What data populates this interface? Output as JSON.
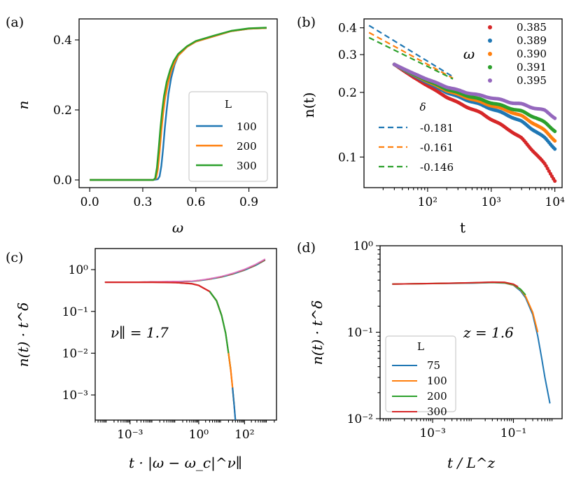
{
  "chart_data": [
    {
      "panel": "(a)",
      "type": "line",
      "xlabel": "ω",
      "ylabel": "n",
      "xlim": [
        -0.06,
        1.06
      ],
      "ylim": [
        -0.022,
        0.46
      ],
      "xticks": [
        0.0,
        0.3,
        0.6,
        0.9
      ],
      "xtick_labels": [
        "0.0",
        "0.3",
        "0.6",
        "0.9"
      ],
      "yticks": [
        0.0,
        0.2,
        0.4
      ],
      "ytick_labels": [
        "0.0",
        "0.2",
        "0.4"
      ],
      "legend": {
        "title": "L",
        "placement": "lower-right"
      },
      "series": [
        {
          "name": "100",
          "color": "#1f77b4",
          "x": [
            0,
            0.36,
            0.385,
            0.395,
            0.405,
            0.415,
            0.425,
            0.435,
            0.445,
            0.46,
            0.48,
            0.5,
            0.55,
            0.6,
            0.7,
            0.8,
            0.9,
            1.0
          ],
          "y": [
            0,
            0,
            0.002,
            0.01,
            0.04,
            0.09,
            0.15,
            0.2,
            0.245,
            0.29,
            0.33,
            0.355,
            0.38,
            0.395,
            0.41,
            0.425,
            0.432,
            0.434
          ]
        },
        {
          "name": "200",
          "color": "#ff7f0e",
          "x": [
            0,
            0.36,
            0.375,
            0.385,
            0.395,
            0.405,
            0.415,
            0.425,
            0.44,
            0.46,
            0.48,
            0.5,
            0.55,
            0.6,
            0.7,
            0.8,
            0.9,
            1.0
          ],
          "y": [
            0,
            0,
            0.005,
            0.03,
            0.08,
            0.14,
            0.19,
            0.23,
            0.27,
            0.31,
            0.335,
            0.355,
            0.38,
            0.395,
            0.41,
            0.425,
            0.432,
            0.434
          ]
        },
        {
          "name": "300",
          "color": "#2ca02c",
          "x": [
            0,
            0.36,
            0.37,
            0.38,
            0.39,
            0.4,
            0.41,
            0.42,
            0.435,
            0.455,
            0.475,
            0.5,
            0.55,
            0.6,
            0.7,
            0.8,
            0.9,
            1.0
          ],
          "y": [
            0,
            0,
            0.005,
            0.035,
            0.09,
            0.15,
            0.2,
            0.24,
            0.28,
            0.315,
            0.34,
            0.36,
            0.382,
            0.397,
            0.412,
            0.426,
            0.433,
            0.435
          ]
        }
      ]
    },
    {
      "panel": "(b)",
      "type": "scatter",
      "xlabel": "t",
      "ylabel": "n(t)",
      "xscale": "log",
      "yscale": "log",
      "xlim": [
        10,
        13000
      ],
      "ylim": [
        0.072,
        0.44
      ],
      "xticks": [
        100,
        1000,
        10000
      ],
      "xtick_labels": [
        "10²",
        "10³",
        "10⁴"
      ],
      "yticks": [
        0.1,
        0.2,
        0.3,
        0.4
      ],
      "ytick_labels": [
        "0.1",
        "0.2",
        "0.3",
        "0.4"
      ],
      "series_legend_title": "ω",
      "fit_legend_title": "δ",
      "series": [
        {
          "name": "0.385",
          "color": "#d62728",
          "t": [
            30,
            60,
            100,
            200,
            400,
            700,
            1000,
            2000,
            3000,
            5000,
            7000,
            10000
          ],
          "n": [
            0.27,
            0.235,
            0.215,
            0.19,
            0.172,
            0.16,
            0.15,
            0.133,
            0.122,
            0.104,
            0.092,
            0.078
          ]
        },
        {
          "name": "0.389",
          "color": "#1f77b4",
          "t": [
            30,
            60,
            100,
            200,
            400,
            700,
            1000,
            2000,
            3000,
            5000,
            7000,
            10000
          ],
          "n": [
            0.27,
            0.24,
            0.222,
            0.2,
            0.185,
            0.175,
            0.168,
            0.155,
            0.146,
            0.132,
            0.122,
            0.11
          ]
        },
        {
          "name": "0.390",
          "color": "#ff7f0e",
          "t": [
            30,
            60,
            100,
            200,
            400,
            700,
            1000,
            2000,
            3000,
            5000,
            7000,
            10000
          ],
          "n": [
            0.27,
            0.242,
            0.225,
            0.204,
            0.19,
            0.18,
            0.174,
            0.163,
            0.155,
            0.142,
            0.132,
            0.12
          ]
        },
        {
          "name": "0.391",
          "color": "#2ca02c",
          "t": [
            30,
            60,
            100,
            200,
            400,
            700,
            1000,
            2000,
            3000,
            5000,
            7000,
            10000
          ],
          "n": [
            0.27,
            0.243,
            0.227,
            0.207,
            0.194,
            0.185,
            0.179,
            0.169,
            0.163,
            0.153,
            0.144,
            0.133
          ]
        },
        {
          "name": "0.395",
          "color": "#9467bd",
          "t": [
            30,
            60,
            100,
            200,
            400,
            700,
            1000,
            2000,
            3000,
            5000,
            7000,
            10000
          ],
          "n": [
            0.27,
            0.245,
            0.23,
            0.212,
            0.2,
            0.193,
            0.189,
            0.18,
            0.176,
            0.169,
            0.164,
            0.153
          ]
        }
      ],
      "fits": [
        {
          "label": "-0.181",
          "color": "#1f77b4",
          "delta": -0.181,
          "t": [
            12,
            250
          ],
          "n0": 0.41
        },
        {
          "label": "-0.161",
          "color": "#ff7f0e",
          "delta": -0.161,
          "t": [
            12,
            250
          ],
          "n0": 0.38
        },
        {
          "label": "-0.146",
          "color": "#2ca02c",
          "delta": -0.146,
          "t": [
            12,
            250
          ],
          "n0": 0.36
        }
      ]
    },
    {
      "panel": "(c)",
      "type": "line",
      "xlabel": "t · |ω − ω_c|^ν∥",
      "ylabel": "n(t) · t^δ",
      "xscale": "log",
      "yscale": "log",
      "xlim": [
        3e-05,
        2500
      ],
      "ylim": [
        0.00025,
        3.2
      ],
      "xticks": [
        0.001,
        1,
        100
      ],
      "xtick_labels": [
        "10⁻³",
        "10⁰",
        "10²"
      ],
      "yticks": [
        0.001,
        0.01,
        0.1,
        1
      ],
      "ytick_labels": [
        "10⁻³",
        "10⁻²",
        "10⁻¹",
        "10⁰"
      ],
      "annotation": "ν∥ = 1.7",
      "upper_branch": {
        "colors": [
          "#1f77b4",
          "#ff7f0e",
          "#2ca02c",
          "#d62728",
          "#9467bd",
          "#8c564b",
          "#e377c2"
        ],
        "x": [
          8e-05,
          0.001,
          0.01,
          0.1,
          0.5,
          1,
          3,
          10,
          30,
          100,
          300,
          800
        ],
        "y": [
          0.5,
          0.5,
          0.51,
          0.52,
          0.53,
          0.55,
          0.6,
          0.68,
          0.8,
          1.0,
          1.3,
          1.75
        ]
      },
      "lower_branch": {
        "colors": [
          "#1f77b4",
          "#ff7f0e",
          "#2ca02c",
          "#d62728"
        ],
        "x": [
          8e-05,
          0.001,
          0.01,
          0.1,
          0.5,
          1,
          3,
          6,
          10,
          15,
          20,
          25,
          30,
          35,
          40
        ],
        "y": [
          0.5,
          0.5,
          0.5,
          0.49,
          0.46,
          0.42,
          0.3,
          0.18,
          0.08,
          0.03,
          0.01,
          0.004,
          0.0015,
          0.0006,
          0.00025
        ]
      }
    },
    {
      "panel": "(d)",
      "type": "line",
      "xlabel": "t / L^z",
      "ylabel": "n(t) · t^δ",
      "xscale": "log",
      "yscale": "log",
      "xlim": [
        5e-05,
        1.6
      ],
      "ylim": [
        0.01,
        1.0
      ],
      "xticks": [
        0.001,
        0.1
      ],
      "xtick_labels": [
        "10⁻³",
        "10⁻¹"
      ],
      "yticks": [
        0.01,
        0.1,
        1
      ],
      "ytick_labels": [
        "10⁻²",
        "10⁻¹",
        "10⁰"
      ],
      "annotation": "z = 1.6",
      "legend": {
        "title": "L",
        "placement": "lower-left"
      },
      "series": [
        {
          "name": "75",
          "color": "#1f77b4",
          "x": [
            0.0001,
            0.001,
            0.01,
            0.03,
            0.06,
            0.1,
            0.15,
            0.2,
            0.3,
            0.4,
            0.5,
            0.6,
            0.8
          ],
          "y": [
            0.36,
            0.365,
            0.37,
            0.375,
            0.37,
            0.35,
            0.3,
            0.25,
            0.16,
            0.09,
            0.05,
            0.03,
            0.015
          ]
        },
        {
          "name": "100",
          "color": "#ff7f0e",
          "x": [
            0.0001,
            0.001,
            0.01,
            0.03,
            0.06,
            0.1,
            0.15,
            0.2,
            0.3,
            0.4
          ],
          "y": [
            0.36,
            0.365,
            0.372,
            0.377,
            0.372,
            0.352,
            0.31,
            0.26,
            0.17,
            0.1
          ]
        },
        {
          "name": "200",
          "color": "#2ca02c",
          "x": [
            0.0001,
            0.001,
            0.01,
            0.03,
            0.06,
            0.1,
            0.15,
            0.2
          ],
          "y": [
            0.36,
            0.366,
            0.373,
            0.378,
            0.375,
            0.355,
            0.315,
            0.27
          ]
        },
        {
          "name": "300",
          "color": "#d62728",
          "x": [
            0.0001,
            0.001,
            0.01,
            0.03,
            0.06,
            0.1,
            0.13
          ],
          "y": [
            0.36,
            0.366,
            0.374,
            0.38,
            0.378,
            0.36,
            0.335
          ]
        }
      ]
    }
  ]
}
